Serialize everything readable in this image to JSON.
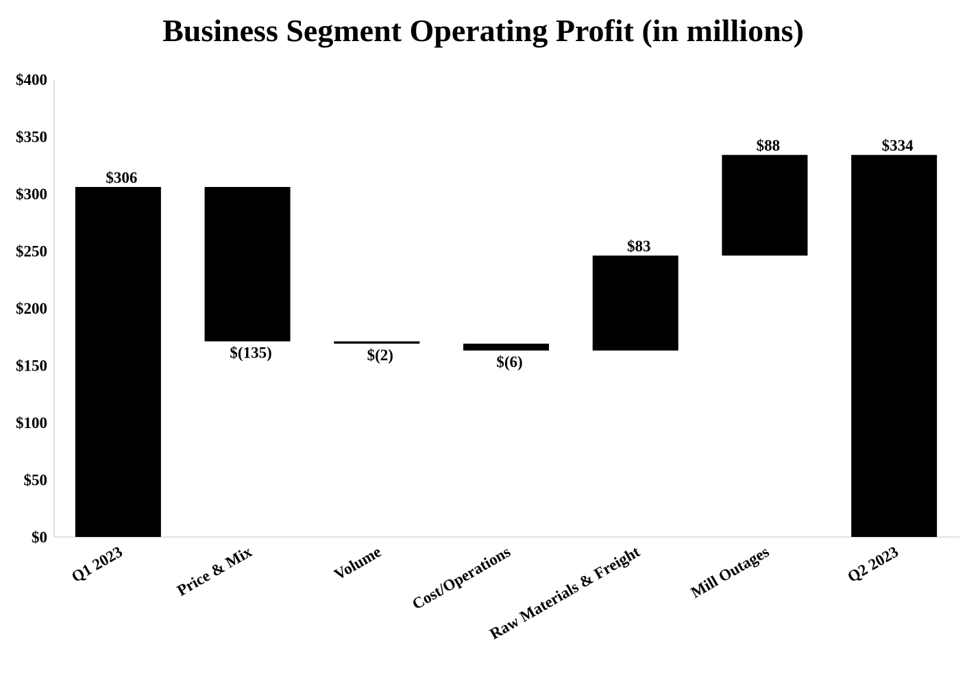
{
  "chart_data": {
    "type": "waterfall",
    "title": "Business Segment Operating Profit (in millions)",
    "xlabel": "",
    "ylabel": "",
    "ylim": [
      0,
      400
    ],
    "yticks": [
      0,
      50,
      100,
      150,
      200,
      250,
      300,
      350,
      400
    ],
    "ytick_labels": [
      "$0",
      "$50",
      "$100",
      "$150",
      "$200",
      "$250",
      "$300",
      "$350",
      "$400"
    ],
    "grid": false,
    "bar_color": "#000000",
    "axis_color": "#d9d9d9",
    "categories": [
      "Q1 2023",
      "Price & Mix",
      "Volume",
      "Cost/Operations",
      "Raw Materials & Freight",
      "Mill Outages",
      "Q2 2023"
    ],
    "values": [
      306,
      -135,
      -2,
      -6,
      83,
      88,
      334
    ],
    "kinds": [
      "total",
      "delta",
      "delta",
      "delta",
      "delta",
      "delta",
      "total"
    ],
    "data_labels": [
      "$306",
      "$(135)",
      "$(2)",
      "$(6)",
      "$83",
      "$88",
      "$334"
    ]
  }
}
